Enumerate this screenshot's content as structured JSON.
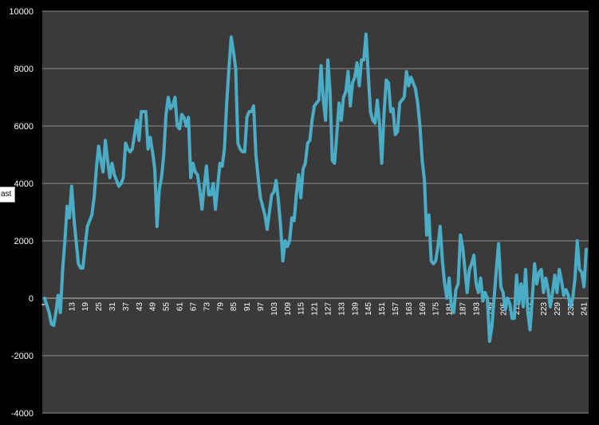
{
  "tooltip": {
    "text": "ast"
  },
  "colors": {
    "background": "#000000",
    "plot_area": "#3a3a3a",
    "gridline": "#8c8c8c",
    "series": "#4bacc6",
    "text": "#ffffff"
  },
  "chart_data": {
    "type": "line",
    "title": "",
    "xlabel": "",
    "ylabel": "",
    "ylim": [
      -4000,
      10000
    ],
    "y_ticks": [
      -4000,
      -2000,
      0,
      2000,
      4000,
      6000,
      8000,
      10000
    ],
    "x": [
      1,
      2,
      3,
      4,
      5,
      6,
      7,
      8,
      9,
      10,
      11,
      12,
      13,
      14,
      15,
      16,
      17,
      18,
      19,
      20,
      21,
      22,
      23,
      24,
      25,
      26,
      27,
      28,
      29,
      30,
      31,
      32,
      33,
      34,
      35,
      36,
      37,
      38,
      39,
      40,
      41,
      42,
      43,
      44,
      45,
      46,
      47,
      48,
      49,
      50,
      51,
      52,
      53,
      54,
      55,
      56,
      57,
      58,
      59,
      60,
      61,
      62,
      63,
      64,
      65,
      66,
      67,
      68,
      69,
      70,
      71,
      72,
      73,
      74,
      75,
      76,
      77,
      78,
      79,
      80,
      81,
      82,
      83,
      84,
      85,
      86,
      87,
      88,
      89,
      90,
      91,
      92,
      93,
      94,
      95,
      96,
      97,
      98,
      99,
      100,
      101,
      102,
      103,
      104,
      105,
      106,
      107,
      108,
      109,
      110,
      111,
      112,
      113,
      114,
      115,
      116,
      117,
      118,
      119,
      120,
      121,
      122,
      123,
      124,
      125,
      126,
      127,
      128,
      129,
      130,
      131,
      132,
      133,
      134,
      135,
      136,
      137,
      138,
      139,
      140,
      141,
      142,
      143,
      144,
      145,
      146,
      147,
      148,
      149,
      150,
      151,
      152,
      153,
      154,
      155,
      156,
      157,
      158,
      159,
      160,
      161,
      162,
      163,
      164,
      165,
      166,
      167,
      168,
      169,
      170,
      171,
      172,
      173,
      174,
      175,
      176,
      177,
      178,
      179,
      180,
      181,
      182,
      183,
      184,
      185,
      186,
      187,
      188,
      189,
      190,
      191,
      192,
      193,
      194,
      195,
      196,
      197,
      198,
      199,
      200,
      201,
      202,
      203,
      204,
      205,
      206,
      207,
      208,
      209,
      210,
      211,
      212,
      213,
      214,
      215,
      216,
      217,
      218,
      219,
      220,
      221,
      222,
      223,
      224,
      225,
      226,
      227,
      228,
      229,
      230,
      231,
      232,
      233,
      234,
      235,
      236,
      237,
      238,
      239,
      240,
      241,
      242
    ],
    "x_tick_labels": [
      "1",
      "7",
      "13",
      "19",
      "25",
      "31",
      "37",
      "43",
      "49",
      "55",
      "61",
      "67",
      "73",
      "79",
      "85",
      "91",
      "97",
      "103",
      "109",
      "115",
      "121",
      "127",
      "133",
      "139",
      "145",
      "151",
      "157",
      "163",
      "169",
      "175",
      "181",
      "187",
      "193",
      "199",
      "205",
      "211",
      "217",
      "223",
      "229",
      "235",
      "241"
    ],
    "series": [
      {
        "values": [
          0,
          -250,
          -500,
          -900,
          -950,
          -500,
          100,
          -500,
          1000,
          2000,
          3200,
          2800,
          3900,
          2800,
          2000,
          1200,
          1050,
          1050,
          1800,
          2500,
          2700,
          2900,
          3500,
          4500,
          5300,
          4800,
          4400,
          5500,
          4800,
          4200,
          4700,
          4300,
          4100,
          3900,
          4000,
          4200,
          5400,
          5200,
          5100,
          5200,
          5700,
          6200,
          5500,
          6500,
          6500,
          6500,
          5200,
          5600,
          5100,
          4500,
          2500,
          3800,
          4200,
          5000,
          6400,
          7000,
          6600,
          6700,
          7000,
          6000,
          5900,
          6400,
          6300,
          6000,
          6300,
          4200,
          4700,
          4400,
          4300,
          3800,
          3100,
          3900,
          4600,
          3600,
          3600,
          4000,
          3100,
          3900,
          4700,
          4600,
          5200,
          6800,
          8000,
          9100,
          8600,
          8000,
          5400,
          5200,
          5100,
          5100,
          6300,
          6500,
          6500,
          6700,
          5000,
          4200,
          3500,
          3200,
          2900,
          2400,
          3000,
          3600,
          3700,
          4100,
          3400,
          2500,
          1300,
          2000,
          1800,
          2000,
          2800,
          2700,
          3600,
          4300,
          3500,
          4500,
          4700,
          5400,
          5500,
          6200,
          6700,
          6800,
          6900,
          8100,
          6900,
          6200,
          8300,
          7200,
          4800,
          4700,
          5700,
          6800,
          6200,
          7000,
          7200,
          7900,
          6700,
          7500,
          7700,
          8200,
          7400,
          8300,
          8300,
          9200,
          7800,
          6500,
          6200,
          6100,
          6900,
          6100,
          4700,
          6400,
          7600,
          7500,
          6500,
          6600,
          5700,
          5800,
          6800,
          6900,
          7000,
          7900,
          7400,
          7700,
          7500,
          7300,
          6800,
          6000,
          4800,
          4100,
          2200,
          2900,
          1300,
          1200,
          1300,
          1800,
          2500,
          1300,
          500,
          0,
          700,
          -300,
          -500,
          300,
          500,
          2200,
          1800,
          1000,
          200,
          1000,
          1200,
          1500,
          500,
          200,
          700,
          -100,
          200,
          0,
          -1500,
          -1000,
          0,
          1000,
          1900,
          400,
          200,
          -400,
          0,
          -200,
          -700,
          -700,
          800,
          -200,
          500,
          -300,
          1000,
          -500,
          -1100,
          0,
          1200,
          500,
          900,
          1000,
          200,
          700,
          300,
          -300,
          200,
          800,
          200,
          1000,
          600,
          100,
          300,
          100,
          -300,
          0,
          700,
          2000,
          1000,
          900,
          400,
          1700
        ]
      }
    ]
  }
}
